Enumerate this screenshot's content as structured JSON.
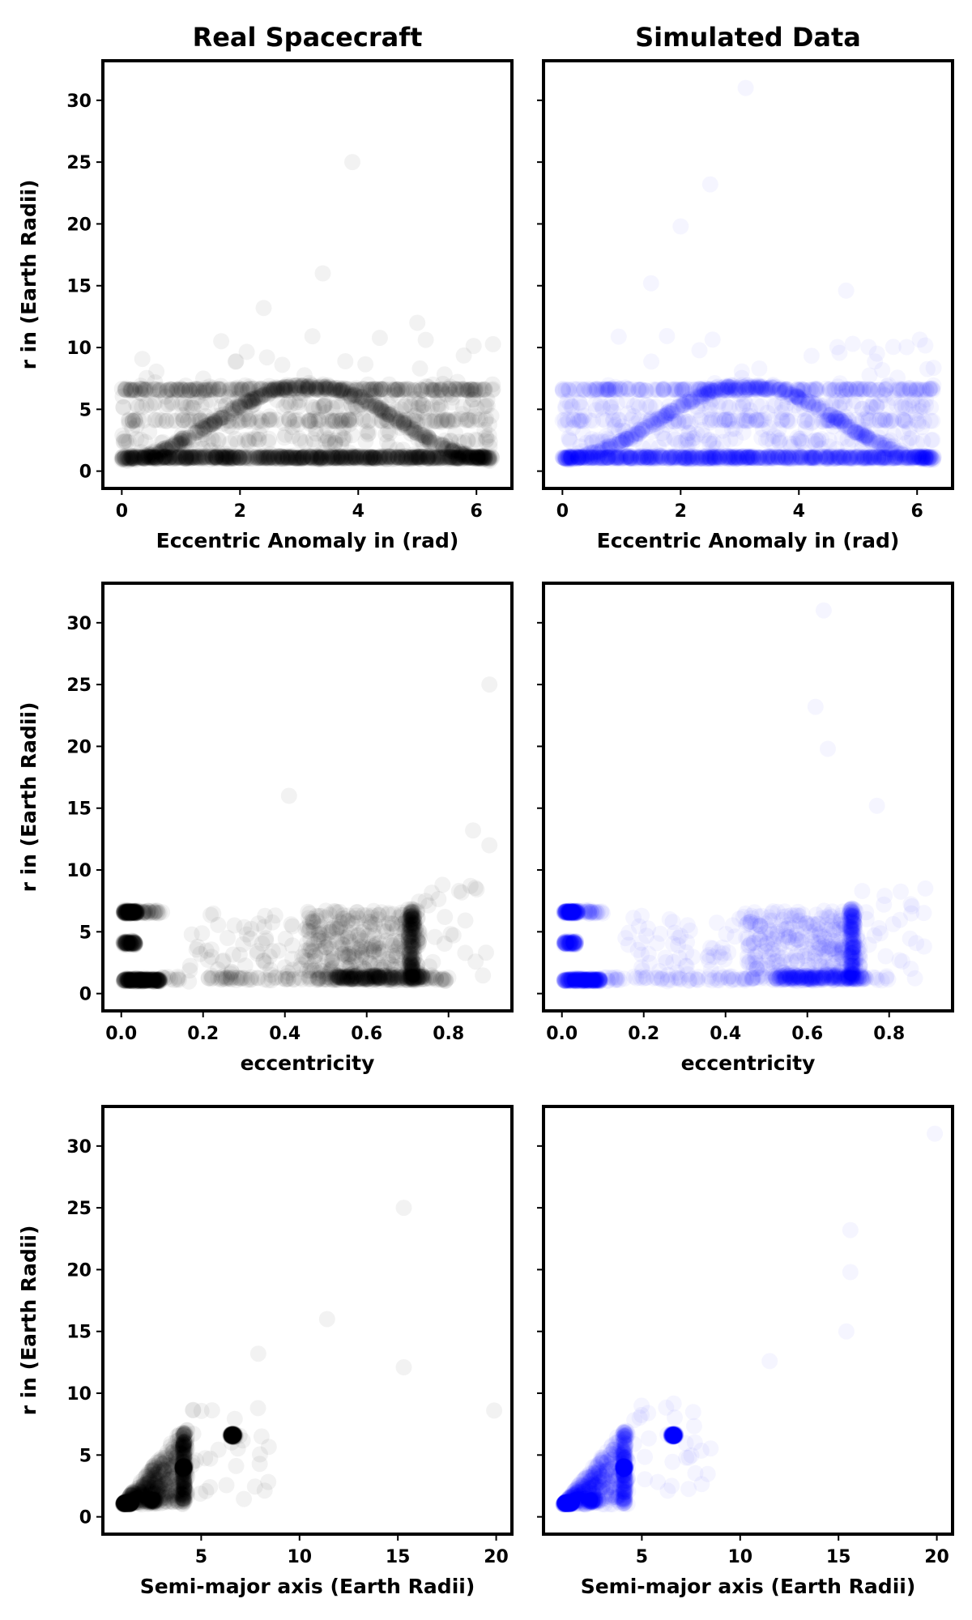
{
  "figure": {
    "columns": [
      "Real Spacecraft",
      "Simulated Data"
    ]
  },
  "chart_data": [
    {
      "type": "scatter",
      "row": 0,
      "col": 0,
      "title": "Real Spacecraft",
      "xlabel": "Eccentric Anomaly in (rad)",
      "ylabel": "r in (Earth Radii)",
      "xlim": [
        -0.32,
        6.6
      ],
      "ylim": [
        -1.4,
        33.2
      ],
      "xticks": [
        0,
        2,
        4,
        6
      ],
      "yticks": [
        0,
        5,
        10,
        15,
        20,
        25,
        30
      ],
      "color": "#000000",
      "opacity": 0.05,
      "pattern": "anomaly",
      "sample_points": [
        [
          0.0,
          1.1
        ],
        [
          3.1,
          6.6
        ],
        [
          5.0,
          3.8
        ],
        [
          3.9,
          25.0
        ],
        [
          2.4,
          13.2
        ],
        [
          3.4,
          16.0
        ],
        [
          5.0,
          12.0
        ],
        [
          6.2,
          1.1
        ]
      ]
    },
    {
      "type": "scatter",
      "row": 0,
      "col": 1,
      "title": "Simulated Data",
      "xlabel": "Eccentric Anomaly in (rad)",
      "ylabel": "",
      "xlim": [
        -0.32,
        6.6
      ],
      "ylim": [
        -1.4,
        33.2
      ],
      "xticks": [
        0,
        2,
        4,
        6
      ],
      "yticks": [
        0,
        5,
        10,
        15,
        20,
        25,
        30
      ],
      "color": "#0000ff",
      "opacity": 0.04,
      "pattern": "anomaly",
      "sample_points": [
        [
          0.0,
          1.1
        ],
        [
          3.1,
          6.6
        ],
        [
          5.0,
          3.8
        ],
        [
          3.1,
          31.0
        ],
        [
          2.5,
          23.2
        ],
        [
          2.0,
          19.8
        ],
        [
          1.5,
          15.2
        ],
        [
          4.8,
          14.6
        ]
      ]
    },
    {
      "type": "scatter",
      "row": 1,
      "col": 0,
      "title": "",
      "xlabel": "eccentricity",
      "ylabel": "r in (Earth Radii)",
      "xlim": [
        -0.045,
        0.955
      ],
      "ylim": [
        -1.4,
        33.2
      ],
      "xticks": [
        0.0,
        0.2,
        0.4,
        0.6,
        0.8
      ],
      "yticks": [
        0,
        5,
        10,
        15,
        20,
        25,
        30
      ],
      "color": "#000000",
      "opacity": 0.05,
      "pattern": "eccentricity",
      "sample_points": [
        [
          0.01,
          6.6
        ],
        [
          0.01,
          4.1
        ],
        [
          0.02,
          1.1
        ],
        [
          0.72,
          1.4
        ],
        [
          0.9,
          25.0
        ],
        [
          0.41,
          16.0
        ],
        [
          0.9,
          12.0
        ],
        [
          0.86,
          13.2
        ]
      ]
    },
    {
      "type": "scatter",
      "row": 1,
      "col": 1,
      "title": "",
      "xlabel": "eccentricity",
      "ylabel": "",
      "xlim": [
        -0.045,
        0.955
      ],
      "ylim": [
        -1.4,
        33.2
      ],
      "xticks": [
        0.0,
        0.2,
        0.4,
        0.6,
        0.8
      ],
      "yticks": [
        0,
        5,
        10,
        15,
        20,
        25,
        30
      ],
      "color": "#0000ff",
      "opacity": 0.04,
      "pattern": "eccentricity",
      "sample_points": [
        [
          0.02,
          6.6
        ],
        [
          0.02,
          4.1
        ],
        [
          0.03,
          1.1
        ],
        [
          0.72,
          1.4
        ],
        [
          0.64,
          31.0
        ],
        [
          0.62,
          23.2
        ],
        [
          0.65,
          19.8
        ],
        [
          0.77,
          15.2
        ]
      ]
    },
    {
      "type": "scatter",
      "row": 2,
      "col": 0,
      "title": "",
      "xlabel": "Semi-major axis (Earth Radii)",
      "ylabel": "r in (Earth Radii)",
      "xlim": [
        0.0,
        20.8
      ],
      "ylim": [
        -1.4,
        33.2
      ],
      "xticks": [
        5,
        10,
        15,
        20
      ],
      "yticks": [
        0,
        5,
        10,
        15,
        20,
        25,
        30
      ],
      "color": "#000000",
      "opacity": 0.05,
      "pattern": "semimajor",
      "sample_points": [
        [
          1.1,
          1.1
        ],
        [
          6.6,
          6.6
        ],
        [
          4.1,
          4.0
        ],
        [
          15.3,
          25.0
        ],
        [
          11.4,
          16.0
        ],
        [
          15.3,
          12.1
        ],
        [
          7.9,
          13.2
        ],
        [
          19.9,
          8.6
        ]
      ]
    },
    {
      "type": "scatter",
      "row": 2,
      "col": 1,
      "title": "",
      "xlabel": "Semi-major axis (Earth Radii)",
      "ylabel": "",
      "xlim": [
        0.0,
        20.8
      ],
      "ylim": [
        -1.4,
        33.2
      ],
      "xticks": [
        5,
        10,
        15,
        20
      ],
      "yticks": [
        0,
        5,
        10,
        15,
        20,
        25,
        30
      ],
      "color": "#0000ff",
      "opacity": 0.04,
      "pattern": "semimajor",
      "sample_points": [
        [
          1.1,
          1.1
        ],
        [
          6.6,
          6.6
        ],
        [
          4.1,
          4.0
        ],
        [
          19.9,
          31.0
        ],
        [
          15.6,
          23.2
        ],
        [
          15.6,
          19.8
        ],
        [
          15.4,
          15.0
        ],
        [
          11.5,
          12.6
        ]
      ]
    }
  ]
}
